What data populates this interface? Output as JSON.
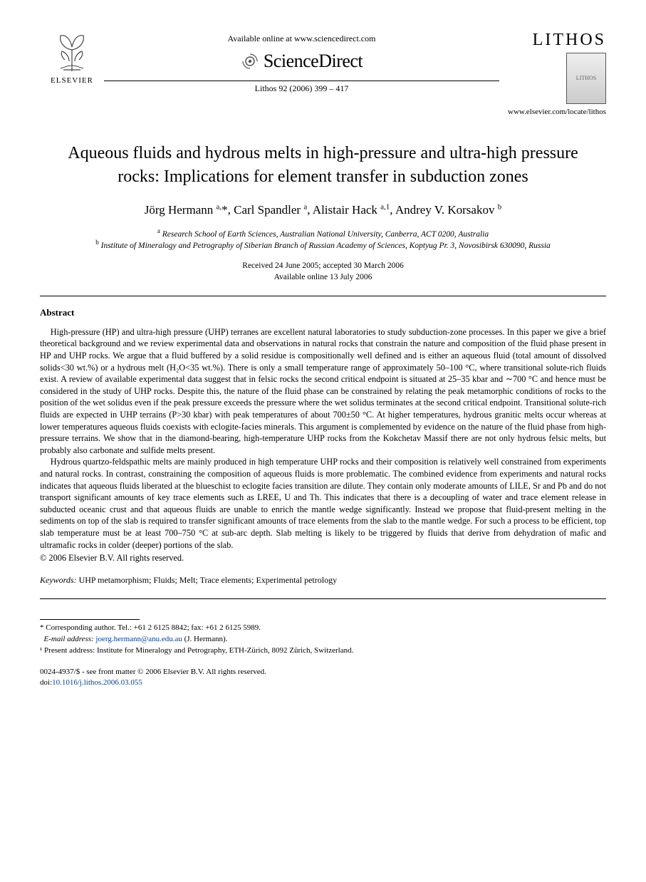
{
  "header": {
    "publisher_label": "ELSEVIER",
    "available_online": "Available online at www.sciencedirect.com",
    "sd_brand": "ScienceDirect",
    "journal_ref": "Lithos 92 (2006) 399 – 417",
    "journal_name": "LITHOS",
    "journal_url": "www.elsevier.com/locate/lithos",
    "cover_text": "LITHOS"
  },
  "article": {
    "title": "Aqueous fluids and hydrous melts in high-pressure and ultra-high pressure rocks: Implications for element transfer in subduction zones",
    "authors_html": "Jörg Hermann <sup>a,</sup>*, Carl Spandler <sup>a</sup>, Alistair Hack <sup>a,1</sup>, Andrey V. Korsakov <sup>b</sup>",
    "affiliations": {
      "a": "Research School of Earth Sciences, Australian National University, Canberra, ACT 0200, Australia",
      "b": "Institute of Mineralogy and Petrography of Siberian Branch of Russian Academy of Sciences, Koptyug Pr. 3, Novosibirsk 630090, Russia"
    },
    "dates": {
      "received_accepted": "Received 24 June 2005; accepted 30 March 2006",
      "online": "Available online 13 July 2006"
    }
  },
  "abstract": {
    "heading": "Abstract",
    "para1": "High-pressure (HP) and ultra-high pressure (UHP) terranes are excellent natural laboratories to study subduction-zone processes. In this paper we give a brief theoretical background and we review experimental data and observations in natural rocks that constrain the nature and composition of the fluid phase present in HP and UHP rocks. We argue that a fluid buffered by a solid residue is compositionally well defined and is either an aqueous fluid (total amount of dissolved solids<30 wt.%) or a hydrous melt (H₂O<35 wt.%). There is only a small temperature range of approximately 50–100 °C, where transitional solute-rich fluids exist. A review of available experimental data suggest that in felsic rocks the second critical endpoint is situated at 25–35 kbar and ∼700 °C and hence must be considered in the study of UHP rocks. Despite this, the nature of the fluid phase can be constrained by relating the peak metamorphic conditions of rocks to the position of the wet solidus even if the peak pressure exceeds the pressure where the wet solidus terminates at the second critical endpoint. Transitional solute-rich fluids are expected in UHP terrains (P>30 kbar) with peak temperatures of about 700±50 °C. At higher temperatures, hydrous granitic melts occur whereas at lower temperatures aqueous fluids coexists with eclogite-facies minerals. This argument is complemented by evidence on the nature of the fluid phase from high-pressure terrains. We show that in the diamond-bearing, high-temperature UHP rocks from the Kokchetav Massif there are not only hydrous felsic melts, but probably also carbonate and sulfide melts present.",
    "para2": "Hydrous quartzo-feldspathic melts are mainly produced in high temperature UHP rocks and their composition is relatively well constrained from experiments and natural rocks. In contrast, constraining the composition of aqueous fluids is more problematic. The combined evidence from experiments and natural rocks indicates that aqueous fluids liberated at the blueschist to eclogite facies transition are dilute. They contain only moderate amounts of LILE, Sr and Pb and do not transport significant amounts of key trace elements such as LREE, U and Th. This indicates that there is a decoupling of water and trace element release in subducted oceanic crust and that aqueous fluids are unable to enrich the mantle wedge significantly. Instead we propose that fluid-present melting in the sediments on top of the slab is required to transfer significant amounts of trace elements from the slab to the mantle wedge. For such a process to be efficient, top slab temperature must be at least 700–750 °C at sub-arc depth. Slab melting is likely to be triggered by fluids that derive from dehydration of mafic and ultramafic rocks in colder (deeper) portions of the slab.",
    "copyright": "© 2006 Elsevier B.V. All rights reserved."
  },
  "keywords": {
    "label": "Keywords:",
    "text": " UHP metamorphism; Fluids; Melt; Trace elements; Experimental petrology"
  },
  "footnotes": {
    "corr": "* Corresponding author. Tel.: +61 2 6125 8842; fax: +61 2 6125 5989.",
    "email_label": "E-mail address:",
    "email": "joerg.hermann@anu.edu.au",
    "email_suffix": " (J. Hermann).",
    "present": "¹ Present address: Institute for Mineralogy and Petrography, ETH-Zürich, 8092 Zürich, Switzerland."
  },
  "bottom": {
    "issn_line": "0024-4937/$ - see front matter © 2006 Elsevier B.V. All rights reserved.",
    "doi_label": "doi:",
    "doi": "10.1016/j.lithos.2006.03.055"
  },
  "colors": {
    "link": "#0a3f8f",
    "text": "#000000",
    "background": "#ffffff"
  },
  "fonts": {
    "body_family": "Times New Roman",
    "title_size_pt": 18,
    "author_size_pt": 13,
    "abstract_size_pt": 9.5,
    "footnote_size_pt": 8.5
  }
}
